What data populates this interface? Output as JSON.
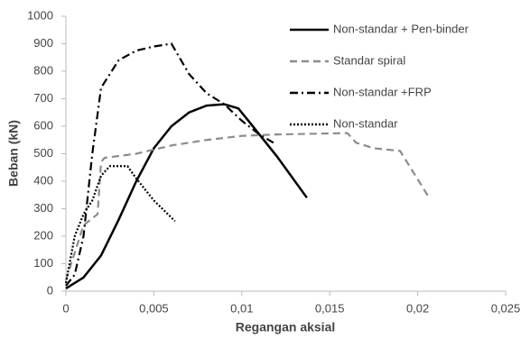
{
  "chart_data": {
    "type": "line",
    "ylabel": "Beban (kN)",
    "xlabel": "Regangan aksial",
    "xlim": [
      0,
      0.025
    ],
    "ylim": [
      0,
      1000
    ],
    "xticks": [
      0,
      {
        "value": 0.005,
        "label": "0,005"
      },
      {
        "value": 0.01,
        "label": "0,01"
      },
      {
        "value": 0.015,
        "label": "0,015"
      },
      {
        "value": 0.02,
        "label": "0,02"
      },
      {
        "value": 0.025,
        "label": "0,025"
      }
    ],
    "yticks": [
      0,
      100,
      200,
      300,
      400,
      500,
      600,
      700,
      800,
      900,
      1000
    ],
    "grid": false,
    "legend": "upper right",
    "series": [
      {
        "name": "Non-standar + Pen-binder",
        "color": "#000000",
        "dash": "solid",
        "x": [
          0,
          0.001,
          0.002,
          0.003,
          0.004,
          0.005,
          0.006,
          0.007,
          0.008,
          0.009,
          0.0098,
          0.0105,
          0.012,
          0.0137
        ],
        "values": [
          10,
          50,
          130,
          260,
          400,
          520,
          600,
          650,
          675,
          680,
          665,
          610,
          490,
          340
        ]
      },
      {
        "name": "Standar spiral",
        "color": "#8c8c8c",
        "dash": "dashed",
        "x": [
          0,
          0.001,
          0.0018,
          0.002,
          0.0022,
          0.004,
          0.006,
          0.008,
          0.01,
          0.012,
          0.016,
          0.0165,
          0.017,
          0.0175,
          0.019,
          0.0207
        ],
        "values": [
          40,
          240,
          280,
          470,
          485,
          500,
          530,
          550,
          565,
          570,
          575,
          540,
          530,
          520,
          510,
          335
        ]
      },
      {
        "name": "Non-standar +FRP",
        "color": "#000000",
        "dash": "dashdot",
        "x": [
          0,
          0.0005,
          0.001,
          0.0015,
          0.002,
          0.003,
          0.004,
          0.005,
          0.006,
          0.007,
          0.008,
          0.009,
          0.01,
          0.011,
          0.0118
        ],
        "values": [
          20,
          60,
          200,
          500,
          740,
          840,
          875,
          890,
          900,
          790,
          720,
          680,
          620,
          570,
          540
        ]
      },
      {
        "name": "Non-standar",
        "color": "#000000",
        "dash": "dotted",
        "x": [
          0,
          0.0005,
          0.001,
          0.0015,
          0.002,
          0.0025,
          0.0035,
          0.004,
          0.005,
          0.0062
        ],
        "values": [
          30,
          200,
          280,
          330,
          420,
          455,
          455,
          410,
          330,
          255
        ]
      }
    ]
  }
}
